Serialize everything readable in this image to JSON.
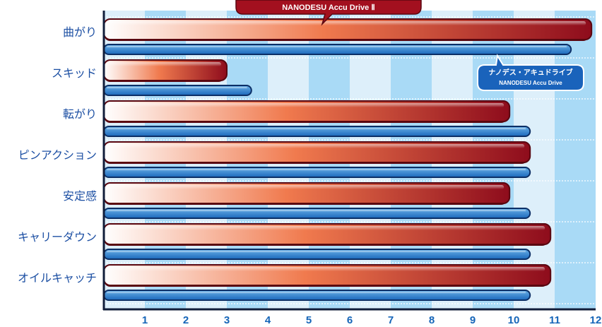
{
  "chart_data": {
    "type": "bar",
    "orientation": "horizontal",
    "categories": [
      "曲がり",
      "スキッド",
      "転がり",
      "ピンアクション",
      "安定感",
      "キャリーダウン",
      "オイルキャッチ"
    ],
    "series": [
      {
        "name": "NANODESU Accu Drive Ⅱ",
        "values": [
          11.9,
          3.0,
          9.9,
          10.4,
          9.9,
          10.9,
          10.9
        ],
        "color_start": "#ffffff",
        "color_mid": "#f07a4e",
        "color_end": "#8e0c1c",
        "border": "#5a0710"
      },
      {
        "name": "ナノデス・アキュドライブ",
        "subtitle": "NANODESU Accu Drive",
        "values": [
          11.4,
          3.6,
          10.4,
          10.4,
          10.4,
          10.4,
          10.4
        ],
        "color_start": "#6ab1e8",
        "color_end": "#1b68bb",
        "border": "#0c2f66"
      }
    ],
    "x_ticks": [
      "1",
      "2",
      "3",
      "4",
      "5",
      "6",
      "7",
      "8",
      "9",
      "10",
      "11",
      "12"
    ],
    "xlim": [
      0,
      12
    ],
    "grid": "alternating-column-bands",
    "legend": "callouts"
  },
  "colors": {
    "band_light": "#ddeffa",
    "band_dark": "#a9daf6",
    "row_separator": "#ffffff",
    "axis": "#111d3a",
    "label": "#1c4fa3",
    "tick": "#1565b8"
  }
}
